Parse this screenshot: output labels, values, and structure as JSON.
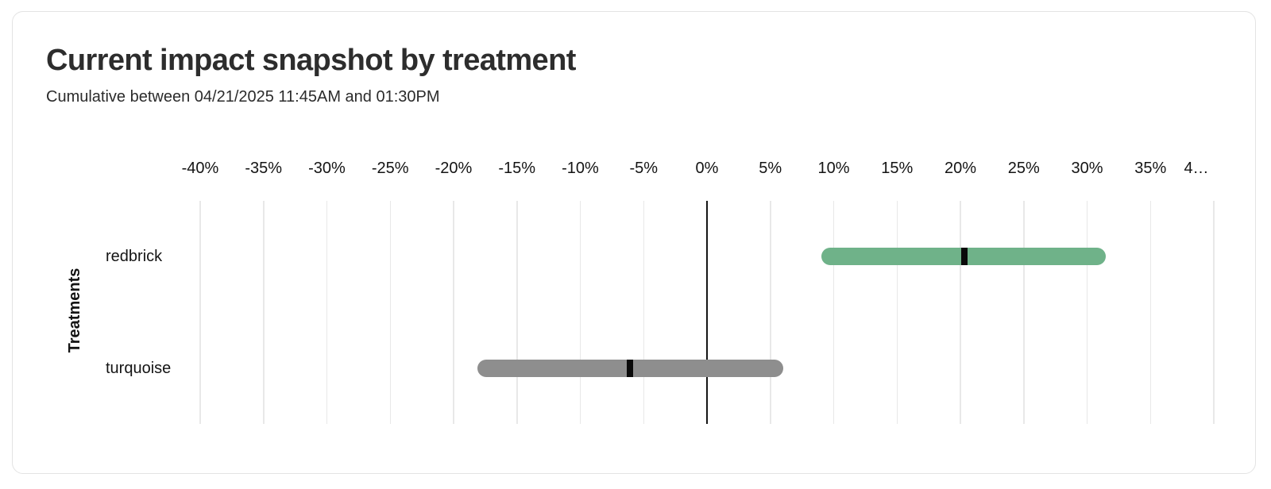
{
  "card": {
    "title": "Current impact snapshot by treatment",
    "subtitle": "Cumulative between 04/21/2025 11:45AM and 01:30PM"
  },
  "chart_data": {
    "type": "bar",
    "orientation": "horizontal",
    "title": "Current impact snapshot by treatment",
    "subtitle": "Cumulative between 04/21/2025 11:45AM and 01:30PM",
    "xlabel": "",
    "ylabel": "Treatments",
    "xlim": [
      -40,
      40
    ],
    "x_tick_values": [
      -40,
      -35,
      -30,
      -25,
      -20,
      -15,
      -10,
      -5,
      0,
      5,
      10,
      15,
      20,
      25,
      30,
      35,
      40
    ],
    "x_tick_labels": [
      "-40%",
      "-35%",
      "-30%",
      "-25%",
      "-20%",
      "-15%",
      "-10%",
      "-5%",
      "0%",
      "5%",
      "10%",
      "15%",
      "20%",
      "25%",
      "30%",
      "35%",
      "4…"
    ],
    "grid": true,
    "zero_line": true,
    "legend_position": "none",
    "categories": [
      "redbrick",
      "turquoise"
    ],
    "series": [
      {
        "name": "redbrick",
        "estimate_pct": 20.3,
        "ci_low_pct": 9.0,
        "ci_high_pct": 31.5,
        "color": "#6FB289"
      },
      {
        "name": "turquoise",
        "estimate_pct": -6.1,
        "ci_low_pct": -18.1,
        "ci_high_pct": 6.0,
        "color": "#8E8E8E"
      }
    ],
    "colors": {
      "grid": "#E8E8E8",
      "zero_line": "#151515",
      "marker": "#0A0A0A",
      "card_border": "#E3E3E3"
    }
  }
}
